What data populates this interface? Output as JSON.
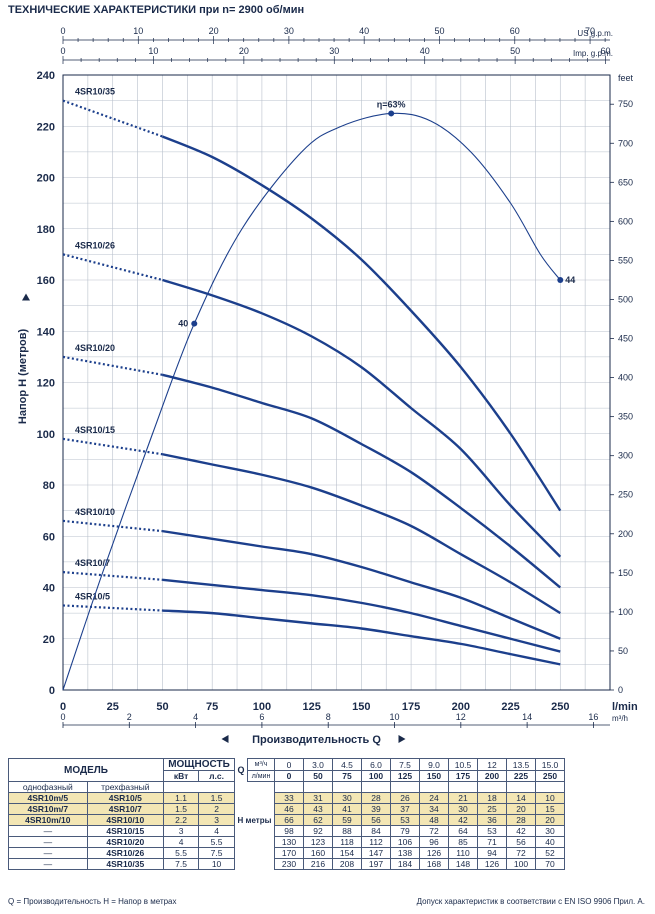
{
  "title": "ТЕХНИЧЕСКИЕ ХАРАКТЕРИСТИКИ при n= 2900 об/мин",
  "chart_data": {
    "type": "line",
    "xlabel": "Производительность Q",
    "ylabel": "Напор H (метров)",
    "x_unit_label": "l/min",
    "y_right_unit": "feet",
    "x_top1_unit": "US g.p.m.",
    "x_top2_unit": "Imp. g.p.m.",
    "x_bottom2_unit": "m³/h",
    "xlim": [
      0,
      275
    ],
    "ylim": [
      0,
      240
    ],
    "x_ticks": [
      0,
      25,
      50,
      75,
      100,
      125,
      150,
      175,
      200,
      225,
      250
    ],
    "y_ticks": [
      0,
      20,
      40,
      60,
      80,
      100,
      120,
      140,
      160,
      180,
      200,
      220,
      240
    ],
    "feet_ticks": [
      0,
      50,
      100,
      150,
      200,
      250,
      300,
      350,
      400,
      450,
      500,
      550,
      600,
      650,
      700,
      750
    ],
    "usgpm_ticks": [
      0,
      10,
      20,
      30,
      40,
      50,
      60,
      70
    ],
    "impgpm_ticks": [
      0,
      10,
      20,
      30,
      40,
      50,
      60
    ],
    "m3h_ticks": [
      0,
      2,
      4,
      6,
      8,
      10,
      12,
      14,
      16
    ],
    "x": [
      0,
      50,
      75,
      100,
      125,
      150,
      175,
      200,
      225,
      250
    ],
    "series": [
      {
        "name": "4SR10/35",
        "values": [
          230,
          216,
          208,
          197,
          184,
          168,
          148,
          126,
          100,
          70
        ]
      },
      {
        "name": "4SR10/26",
        "values": [
          170,
          160,
          154,
          147,
          138,
          126,
          110,
          94,
          72,
          52
        ]
      },
      {
        "name": "4SR10/20",
        "values": [
          130,
          123,
          118,
          112,
          106,
          96,
          85,
          71,
          56,
          40
        ]
      },
      {
        "name": "4SR10/15",
        "values": [
          98,
          92,
          88,
          84,
          79,
          72,
          64,
          53,
          42,
          30
        ]
      },
      {
        "name": "4SR10/10",
        "values": [
          66,
          62,
          59,
          56,
          53,
          48,
          42,
          36,
          28,
          20
        ]
      },
      {
        "name": "4SR10/7",
        "values": [
          46,
          43,
          41,
          39,
          37,
          34,
          30,
          25,
          20,
          15
        ]
      },
      {
        "name": "4SR10/5",
        "values": [
          33,
          31,
          30,
          28,
          26,
          24,
          21,
          18,
          14,
          10
        ]
      }
    ],
    "efficiency": {
      "label": "η=63%",
      "x": [
        0,
        20,
        45,
        66,
        90,
        120,
        140,
        165,
        185,
        205,
        225,
        240,
        250
      ],
      "y": [
        0,
        46,
        100,
        143,
        180,
        210,
        220,
        225,
        222,
        210,
        190,
        170,
        160
      ],
      "points": [
        {
          "label": "40",
          "x": 66,
          "y": 143
        },
        {
          "label": "η=63%",
          "x": 165,
          "y": 225
        },
        {
          "label": "44",
          "x": 250,
          "y": 160
        }
      ]
    }
  },
  "table": {
    "model_header": "МОДЕЛЬ",
    "power_header": "МОЩНОСТЬ",
    "single_phase": "однофазный",
    "three_phase": "трехфазный",
    "kw": "кВт",
    "hp": "л.с.",
    "q_symbol": "Q",
    "q_unit_m3h": "м³/ч",
    "q_unit_lmin": "л/мин",
    "h_label": "H метры",
    "q_m3h": [
      "0",
      "3.0",
      "4.5",
      "6.0",
      "7.5",
      "9.0",
      "10.5",
      "12",
      "13.5",
      "15.0"
    ],
    "q_lmin": [
      "0",
      "50",
      "75",
      "100",
      "125",
      "150",
      "175",
      "200",
      "225",
      "250"
    ],
    "rows": [
      {
        "single": "4SR10m/5",
        "three": "4SR10/5",
        "kw": "1.1",
        "hp": "1.5",
        "h": [
          "33",
          "31",
          "30",
          "28",
          "26",
          "24",
          "21",
          "18",
          "14",
          "10"
        ]
      },
      {
        "single": "4SR10m/7",
        "three": "4SR10/7",
        "kw": "1.5",
        "hp": "2",
        "h": [
          "46",
          "43",
          "41",
          "39",
          "37",
          "34",
          "30",
          "25",
          "20",
          "15"
        ]
      },
      {
        "single": "4SR10m/10",
        "three": "4SR10/10",
        "kw": "2.2",
        "hp": "3",
        "h": [
          "66",
          "62",
          "59",
          "56",
          "53",
          "48",
          "42",
          "36",
          "28",
          "20"
        ]
      },
      {
        "single": "—",
        "three": "4SR10/15",
        "kw": "3",
        "hp": "4",
        "h": [
          "98",
          "92",
          "88",
          "84",
          "79",
          "72",
          "64",
          "53",
          "42",
          "30"
        ]
      },
      {
        "single": "—",
        "three": "4SR10/20",
        "kw": "4",
        "hp": "5.5",
        "h": [
          "130",
          "123",
          "118",
          "112",
          "106",
          "96",
          "85",
          "71",
          "56",
          "40"
        ]
      },
      {
        "single": "—",
        "three": "4SR10/26",
        "kw": "5.5",
        "hp": "7.5",
        "h": [
          "170",
          "160",
          "154",
          "147",
          "138",
          "126",
          "110",
          "94",
          "72",
          "52"
        ]
      },
      {
        "single": "—",
        "three": "4SR10/35",
        "kw": "7.5",
        "hp": "10",
        "h": [
          "230",
          "216",
          "208",
          "197",
          "184",
          "168",
          "148",
          "126",
          "100",
          "70"
        ]
      }
    ]
  },
  "footer": {
    "left": "Q = Производительность   H = Напор в метрах",
    "right": "Допуск характеристик в соответствии с EN ISO 9906 Прил.  A."
  },
  "colors": {
    "curve": "#1c3f8c",
    "grid": "#b9c0cc",
    "text": "#1a2a4a",
    "highlight": "#f3e6b4"
  }
}
